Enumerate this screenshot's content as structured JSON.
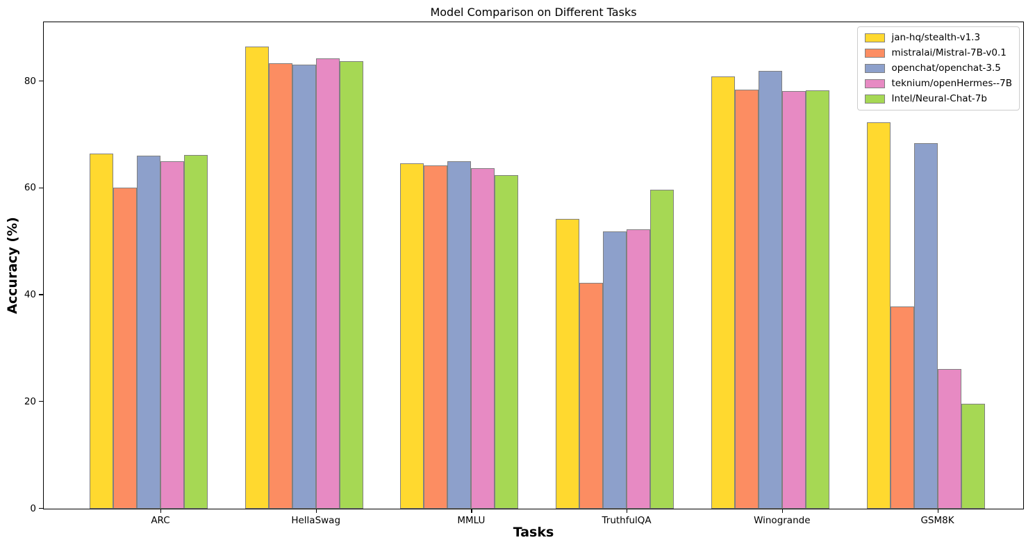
{
  "figure": {
    "title": "Model Comparison on Different Tasks",
    "xlabel": "Tasks",
    "ylabel": "Accuracy (%)"
  },
  "chart_data": {
    "type": "bar",
    "title": "Model Comparison on Different Tasks",
    "xlabel": "Tasks",
    "ylabel": "Accuracy (%)",
    "categories": [
      "ARC",
      "HellaSwag",
      "MMLU",
      "TruthfulQA",
      "Winogrande",
      "GSM8K"
    ],
    "series": [
      {
        "name": "jan-hq/stealth-v1.3",
        "color": "#FFD92F",
        "values": [
          66.4,
          86.4,
          64.6,
          54.2,
          80.9,
          72.3
        ]
      },
      {
        "name": "mistralai/Mistral-7B-v0.1",
        "color": "#FC8D62",
        "values": [
          60.0,
          83.3,
          64.2,
          42.2,
          78.4,
          37.8
        ]
      },
      {
        "name": "openchat/openchat-3.5",
        "color": "#8DA0CB",
        "values": [
          66.1,
          83.1,
          65.0,
          51.9,
          81.9,
          68.4
        ]
      },
      {
        "name": "teknium/openHermes--7B",
        "color": "#E78AC3",
        "values": [
          65.0,
          84.2,
          63.7,
          52.2,
          78.1,
          26.1
        ]
      },
      {
        "name": "Intel/Neural-Chat-7b",
        "color": "#A6D854",
        "values": [
          66.2,
          83.7,
          62.4,
          59.7,
          78.2,
          19.6
        ]
      }
    ],
    "ylim": [
      0,
      91
    ],
    "yticks": [
      0,
      20,
      40,
      60,
      80
    ],
    "bar_edge_color": "#808080",
    "grid": false,
    "legend_position": "upper right"
  }
}
